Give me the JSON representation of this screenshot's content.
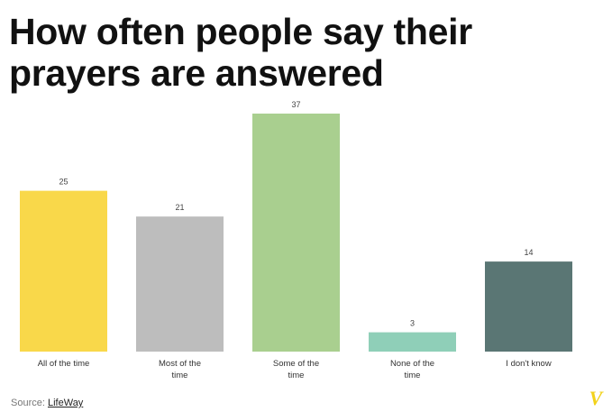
{
  "title": "How often people say their prayers are answered",
  "source": {
    "label": "Source:",
    "name": "LifeWay"
  },
  "logo": {
    "text": "V",
    "color": "#f2d21b"
  },
  "colors": {
    "all_of_the_time": "#f9d84a",
    "most_of_the_time": "#bdbdbd",
    "some_of_the_time": "#a9cf8f",
    "none_of_the_time": "#8fcfb8",
    "i_dont_know": "#5a7674"
  },
  "chart_data": {
    "type": "bar",
    "title": "How often people say their prayers are answered",
    "categories": [
      [
        "All of the time"
      ],
      [
        "Most of the",
        "time"
      ],
      [
        "Some of the",
        "time"
      ],
      [
        "None of the",
        "time"
      ],
      [
        "I don't know"
      ]
    ],
    "values": [
      25,
      21,
      37,
      3,
      14
    ],
    "colors": [
      "#f9d84a",
      "#bdbdbd",
      "#a9cf8f",
      "#8fcfb8",
      "#5a7674"
    ],
    "ylim": [
      0,
      37
    ],
    "grid": false,
    "legend": "none"
  }
}
